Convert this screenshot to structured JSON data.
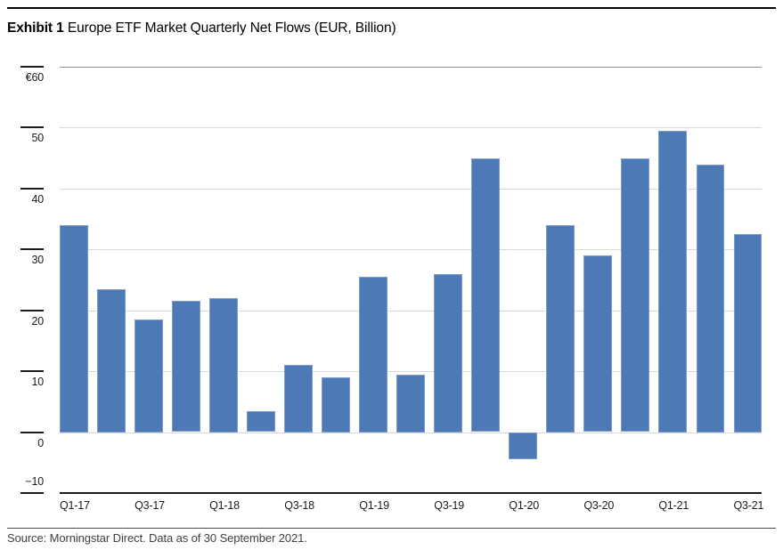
{
  "page": {
    "title_exhibit": "Exhibit 1",
    "title_text": " Europe ETF Market Quarterly Net Flows (EUR, Billion)",
    "footer_text": "Source: Morningstar Direct. Data as of 30 September 2021."
  },
  "chart_data": {
    "type": "bar",
    "title": "Europe ETF Market Quarterly Net Flows (EUR, Billion)",
    "unit": "EUR, Billion",
    "categories": [
      "Q1-17",
      "Q2-17",
      "Q3-17",
      "Q4-17",
      "Q1-18",
      "Q2-18",
      "Q3-18",
      "Q4-18",
      "Q1-19",
      "Q2-19",
      "Q3-19",
      "Q4-19",
      "Q1-20",
      "Q2-20",
      "Q3-20",
      "Q4-20",
      "Q1-21",
      "Q2-21",
      "Q3-21"
    ],
    "values": [
      34,
      23.5,
      18.5,
      21.5,
      22,
      3.5,
      11,
      9,
      25.5,
      9.5,
      26,
      45,
      -4.5,
      34,
      29,
      45,
      49.5,
      44,
      32.5
    ],
    "x_tick_labels": [
      "Q1-17",
      "Q3-17",
      "Q1-18",
      "Q3-18",
      "Q1-19",
      "Q3-19",
      "Q1-20",
      "Q3-20",
      "Q1-21",
      "Q3-21"
    ],
    "y_ticks": [
      60,
      50,
      40,
      30,
      20,
      10,
      0,
      -10
    ],
    "y_tick_labels": [
      "€60",
      "50",
      "40",
      "30",
      "20",
      "10",
      "0",
      "−10"
    ],
    "ylim": [
      -10,
      60
    ],
    "baseline": 0,
    "grid": true,
    "legend": false,
    "bar_color": "#4d79b6",
    "bar_edge_color": "#7f9bca",
    "colors": {
      "grid_light": "#d9d9d9",
      "grid_top": "#8c8c8c",
      "axis": "#1a1a1a",
      "text": "#1a1a1a",
      "footer_text": "#404040"
    }
  }
}
